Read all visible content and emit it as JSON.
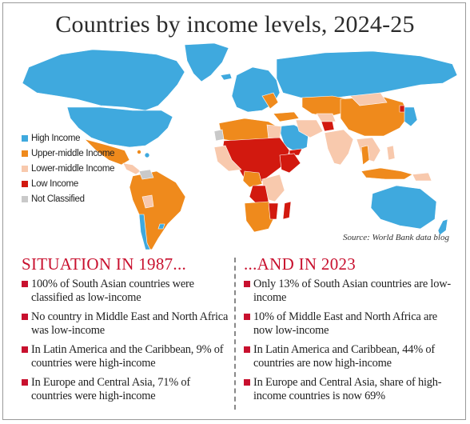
{
  "title": "Countries by income levels, 2024-25",
  "source": "Source: World Bank data blog",
  "colors": {
    "high": "#3fa9de",
    "upper_middle": "#ef8a1c",
    "lower_middle": "#f8c9ad",
    "low": "#d2190f",
    "not_classified": "#c9c9c9",
    "heading": "#c8102e"
  },
  "legend": [
    {
      "key": "high",
      "label": "High Income"
    },
    {
      "key": "upper_middle",
      "label": "Upper-middle Income"
    },
    {
      "key": "lower_middle",
      "label": "Lower-middle Income"
    },
    {
      "key": "low",
      "label": "Low Income"
    },
    {
      "key": "not_classified",
      "label": "Not Classified"
    }
  ],
  "left": {
    "heading": "SITUATION IN 1987...",
    "bullets": [
      "100% of South Asian countries were classified as low-income",
      "No country in Middle East and North Africa was low-income",
      "In Latin America and the Caribbean, 9% of countries were high-income",
      "In Europe and Central Asia, 71% of countries were high-income"
    ]
  },
  "right": {
    "heading": "...AND IN 2023",
    "bullets": [
      "Only 13% of South Asian countries are low-income",
      "10% of Middle East and North Africa are now low-income",
      "In Latin America and Caribbean, 44% of countries are now high-income",
      "In Europe and Central Asia, share of high-income countries is now 69%"
    ]
  }
}
